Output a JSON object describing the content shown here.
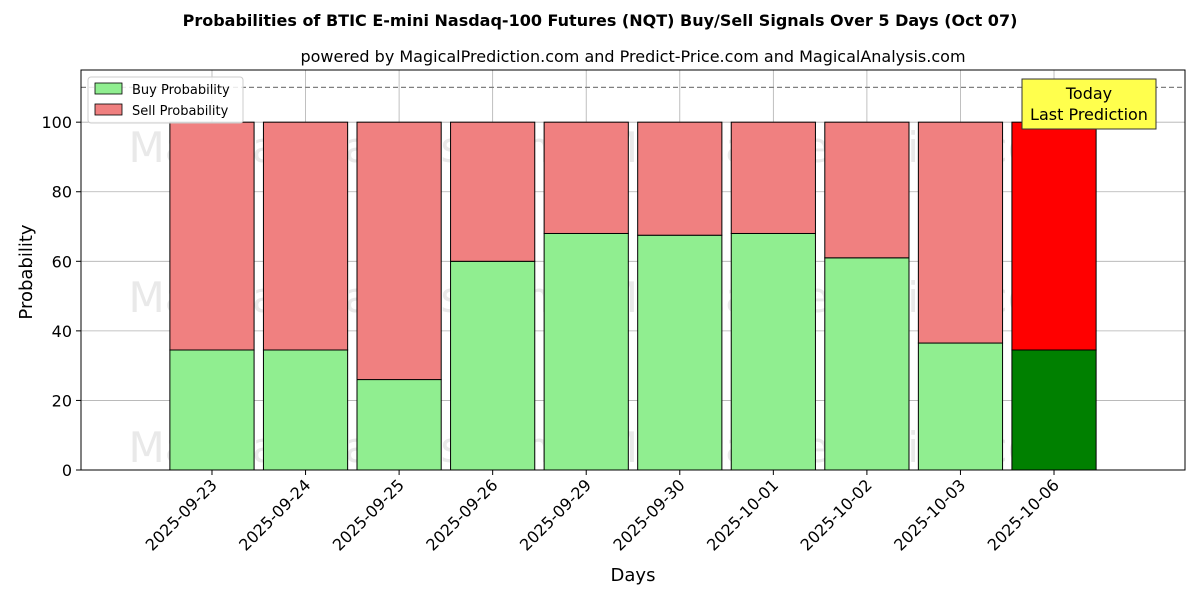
{
  "chart_data": {
    "type": "bar",
    "stacked": true,
    "title": "Probabilities of BTIC E-mini Nasdaq-100 Futures (NQT) Buy/Sell Signals Over 5 Days (Oct 07)",
    "subtitle": "powered by MagicalPrediction.com and Predict-Price.com and MagicalAnalysis.com",
    "xlabel": "Days",
    "ylabel": "Probability",
    "ylim": [
      0,
      115
    ],
    "yticks": [
      0,
      20,
      40,
      60,
      80,
      100
    ],
    "grid": true,
    "legend_position": "top-left",
    "reference_line": 110,
    "categories": [
      "2025-09-23",
      "2025-09-24",
      "2025-09-25",
      "2025-09-26",
      "2025-09-29",
      "2025-09-30",
      "2025-10-01",
      "2025-10-02",
      "2025-10-03",
      "2025-10-06"
    ],
    "series": [
      {
        "name": "Buy Probability",
        "values": [
          34.5,
          34.5,
          26,
          60,
          68,
          67.5,
          68,
          61,
          36.5,
          34.5
        ],
        "color": "#90ee90",
        "highlight_color": "#008000"
      },
      {
        "name": "Sell Probability",
        "values": [
          65.5,
          65.5,
          74,
          40,
          32,
          32.5,
          32,
          39,
          63.5,
          65.5
        ],
        "color": "#f08080",
        "highlight_color": "#ff0000"
      }
    ],
    "highlight_index": 9,
    "annotation": {
      "lines": [
        "Today",
        "Last Prediction"
      ],
      "background": "#ffff4d"
    },
    "watermarks": [
      "MagicalAnalysis.com",
      "MagicalPrediction.com"
    ]
  }
}
